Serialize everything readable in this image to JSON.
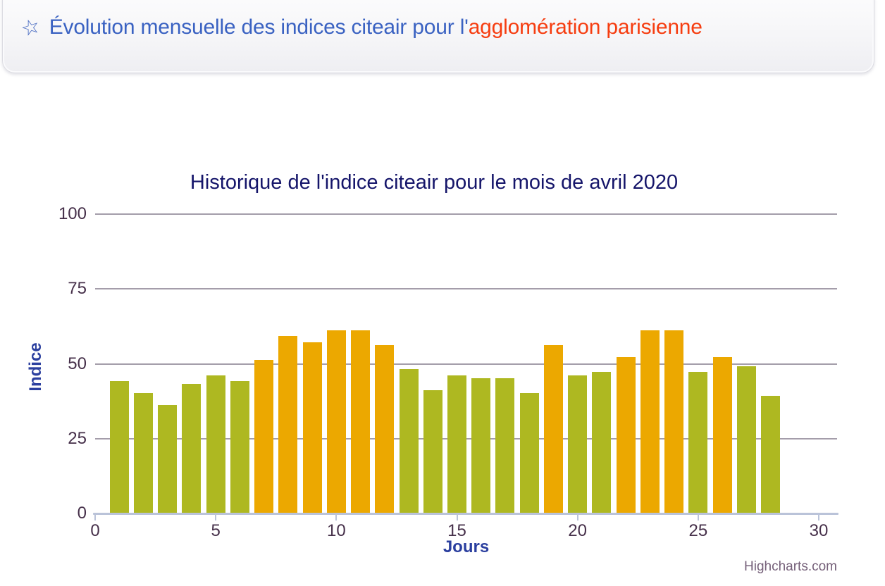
{
  "header": {
    "icon": "star-icon",
    "title_blue": "Évolution mensuelle des indices citeair pour l'",
    "title_orange": "agglomération parisienne",
    "blue_color": "#3a62c2",
    "orange_color": "#f63d10",
    "star_color": "#4a6cc2"
  },
  "chart_data": {
    "type": "bar",
    "title": "Historique de l'indice citeair pour le mois de avril 2020",
    "xlabel": "Jours",
    "ylabel": "Indice",
    "credit": "Highcharts.com",
    "x": [
      1,
      2,
      3,
      4,
      5,
      6,
      7,
      8,
      9,
      10,
      11,
      12,
      13,
      14,
      15,
      16,
      17,
      18,
      19,
      20,
      21,
      22,
      23,
      24,
      25,
      26,
      27,
      28
    ],
    "values": [
      44,
      40,
      36,
      43,
      46,
      44,
      51,
      59,
      57,
      61,
      61,
      56,
      48,
      41,
      46,
      45,
      45,
      40,
      56,
      46,
      47,
      52,
      61,
      61,
      47,
      52,
      49,
      39
    ],
    "xticks": [
      0,
      5,
      10,
      15,
      20,
      25,
      30
    ],
    "yticks": [
      0,
      25,
      50,
      75,
      100
    ],
    "xlim": [
      0,
      30.8
    ],
    "ylim": [
      0,
      100
    ],
    "grid": true,
    "legend": "none",
    "color_threshold": 50,
    "colors": {
      "bar_low_green": "#aeb821",
      "bar_medium_orange": "#eca800",
      "gridline": "#a49daa",
      "axis_line": "#bac3d9",
      "tick_label": "#46304a",
      "axis_title": "#2b3f9f",
      "chart_title": "#15156a",
      "credit": "#756079"
    }
  }
}
